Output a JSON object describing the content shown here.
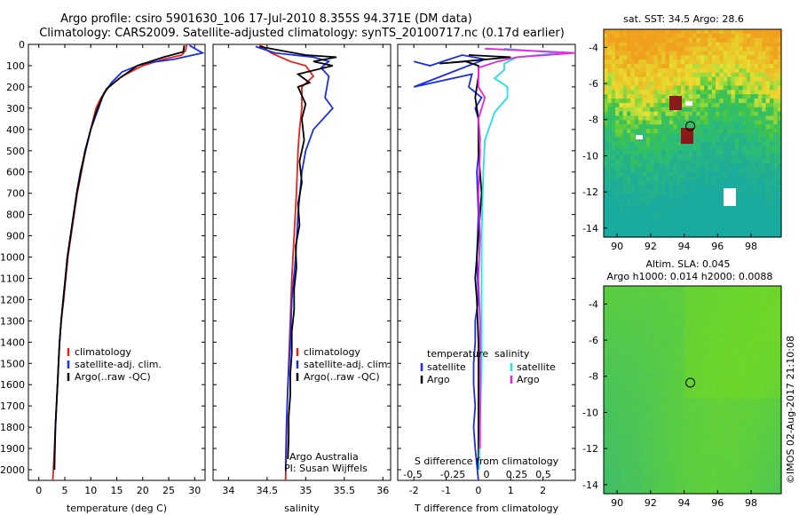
{
  "header": {
    "title_line1": "Argo profile: csiro 5901630_106 17-Jul-2010 8.355S 94.371E (DM data)",
    "title_line2": "Climatology: CARS2009. Satellite-adjusted climatology: synTS_20100717.nc (0.17d earlier)"
  },
  "credit": "©IMOS 02-Aug-2017 21:10:08",
  "colors": {
    "climatology": "#e8201a",
    "satellite": "#1a2ee8",
    "argo": "#000000",
    "cyan": "#22e0e8",
    "magenta": "#e822e0"
  },
  "chart_data": [
    {
      "type": "line",
      "id": "temperature",
      "xlabel": "temperature (deg C)",
      "ylabel": "",
      "xlim": [
        -2,
        32
      ],
      "ylim": [
        2050,
        0
      ],
      "xticks": [
        "0",
        "5",
        "10",
        "15",
        "20",
        "25",
        "30"
      ],
      "yticks": [
        "0",
        "100",
        "200",
        "300",
        "400",
        "500",
        "600",
        "700",
        "800",
        "900",
        "1000",
        "1100",
        "1200",
        "1300",
        "1400",
        "1500",
        "1600",
        "1700",
        "1800",
        "1900",
        "2000"
      ],
      "legend": [
        "climatology",
        "satellite-adj. clim.",
        "Argo(..raw -QC)"
      ],
      "series": [
        {
          "name": "climatology",
          "color": "#e8201a",
          "points": [
            [
              28.5,
              0
            ],
            [
              28.2,
              30
            ],
            [
              27.5,
              50
            ],
            [
              24,
              70
            ],
            [
              20,
              100
            ],
            [
              16,
              150
            ],
            [
              13.5,
              200
            ],
            [
              12,
              250
            ],
            [
              11,
              300
            ],
            [
              10,
              400
            ],
            [
              9,
              500
            ],
            [
              8.2,
              600
            ],
            [
              7.4,
              700
            ],
            [
              6.8,
              800
            ],
            [
              6.2,
              900
            ],
            [
              5.6,
              1000
            ],
            [
              5.2,
              1100
            ],
            [
              4.8,
              1200
            ],
            [
              4.3,
              1300
            ],
            [
              4,
              1400
            ],
            [
              3.8,
              1500
            ],
            [
              3.6,
              1600
            ],
            [
              3.4,
              1700
            ],
            [
              3.2,
              1800
            ],
            [
              3,
              1900
            ],
            [
              2.8,
              2000
            ],
            [
              2.7,
              2050
            ]
          ]
        },
        {
          "name": "satellite-adj. clim.",
          "color": "#1a2ee8",
          "points": [
            [
              29,
              5
            ],
            [
              31.5,
              40
            ],
            [
              26,
              70
            ],
            [
              20,
              90
            ],
            [
              16,
              130
            ],
            [
              14,
              180
            ],
            [
              12.5,
              230
            ],
            [
              11.5,
              300
            ],
            [
              10,
              400
            ],
            [
              9,
              500
            ],
            [
              8,
              600
            ],
            [
              7.3,
              700
            ],
            [
              6.7,
              800
            ],
            [
              6.1,
              900
            ],
            [
              5.5,
              1000
            ],
            [
              5.1,
              1100
            ],
            [
              4.7,
              1200
            ],
            [
              4.3,
              1300
            ],
            [
              4,
              1400
            ],
            [
              3.8,
              1500
            ],
            [
              3.6,
              1600
            ],
            [
              3.4,
              1700
            ],
            [
              3.2,
              1800
            ],
            [
              3.1,
              1900
            ],
            [
              3,
              2000
            ]
          ]
        },
        {
          "name": "Argo(..raw -QC)",
          "color": "#000000",
          "points": [
            [
              28,
              5
            ],
            [
              27.8,
              35
            ],
            [
              24,
              60
            ],
            [
              19,
              100
            ],
            [
              15.5,
              160
            ],
            [
              13,
              210
            ],
            [
              12,
              260
            ],
            [
              11,
              320
            ],
            [
              10,
              400
            ],
            [
              8.9,
              500
            ],
            [
              8.1,
              600
            ],
            [
              7.3,
              700
            ],
            [
              6.7,
              800
            ],
            [
              6.1,
              900
            ],
            [
              5.5,
              1000
            ],
            [
              5.1,
              1100
            ],
            [
              4.7,
              1200
            ],
            [
              4.3,
              1300
            ],
            [
              4,
              1400
            ],
            [
              3.8,
              1500
            ],
            [
              3.6,
              1600
            ],
            [
              3.4,
              1700
            ],
            [
              3.2,
              1800
            ],
            [
              3.1,
              1900
            ],
            [
              3,
              2000
            ]
          ]
        }
      ]
    },
    {
      "type": "line",
      "id": "salinity",
      "xlabel": "salinity",
      "ylabel": "",
      "xlim": [
        33.8,
        36.1
      ],
      "ylim": [
        2050,
        0
      ],
      "xticks": [
        "34",
        "34.5",
        "35",
        "35.5",
        "36"
      ],
      "legend": [
        "climatology",
        "satellite-adj. clim.",
        "Argo(..raw -QC)"
      ],
      "annotations": [
        "Argo Australia",
        "PI: Susan Wijffels"
      ],
      "series": [
        {
          "name": "climatology",
          "color": "#e8201a",
          "points": [
            [
              34.4,
              0
            ],
            [
              34.55,
              40
            ],
            [
              34.8,
              80
            ],
            [
              35,
              100
            ],
            [
              35.1,
              150
            ],
            [
              34.95,
              200
            ],
            [
              34.95,
              300
            ],
            [
              34.92,
              400
            ],
            [
              34.9,
              500
            ],
            [
              34.88,
              700
            ],
            [
              34.85,
              900
            ],
            [
              34.82,
              1100
            ],
            [
              34.8,
              1300
            ],
            [
              34.78,
              1500
            ],
            [
              34.76,
              1700
            ],
            [
              34.75,
              1900
            ],
            [
              34.74,
              2050
            ]
          ]
        },
        {
          "name": "satellite-adj. clim.",
          "color": "#1a2ee8",
          "points": [
            [
              34.35,
              10
            ],
            [
              34.6,
              40
            ],
            [
              35.1,
              60
            ],
            [
              35.3,
              80
            ],
            [
              35.2,
              110
            ],
            [
              35.3,
              150
            ],
            [
              35.25,
              250
            ],
            [
              35.35,
              300
            ],
            [
              35.1,
              400
            ],
            [
              35,
              500
            ],
            [
              34.95,
              600
            ],
            [
              34.9,
              800
            ],
            [
              34.87,
              1000
            ],
            [
              34.82,
              1200
            ],
            [
              34.8,
              1400
            ],
            [
              34.77,
              1600
            ],
            [
              34.75,
              1800
            ],
            [
              34.74,
              2000
            ]
          ]
        },
        {
          "name": "Argo(..raw -QC)",
          "color": "#000000",
          "points": [
            [
              34.4,
              10
            ],
            [
              34.7,
              30
            ],
            [
              35,
              50
            ],
            [
              35.4,
              60
            ],
            [
              35.1,
              80
            ],
            [
              35.35,
              100
            ],
            [
              34.9,
              140
            ],
            [
              35.05,
              180
            ],
            [
              34.9,
              200
            ],
            [
              35,
              280
            ],
            [
              34.95,
              350
            ],
            [
              34.98,
              450
            ],
            [
              34.92,
              550
            ],
            [
              34.95,
              650
            ],
            [
              34.9,
              750
            ],
            [
              34.92,
              850
            ],
            [
              34.87,
              950
            ],
            [
              34.88,
              1050
            ],
            [
              34.85,
              1150
            ],
            [
              34.85,
              1250
            ],
            [
              34.82,
              1350
            ],
            [
              34.82,
              1450
            ],
            [
              34.8,
              1550
            ],
            [
              34.8,
              1650
            ],
            [
              34.78,
              1750
            ],
            [
              34.78,
              1850
            ],
            [
              34.77,
              1950
            ]
          ]
        }
      ]
    },
    {
      "type": "line",
      "id": "difference",
      "xlabel": "T difference from climatology",
      "xlabel_top": "S difference from climatology",
      "ylabel": "",
      "xlim": [
        -2.5,
        3
      ],
      "ylim": [
        2050,
        0
      ],
      "xticks": [
        "-2",
        "-1",
        "0",
        "1",
        "2"
      ],
      "xticks_top": [
        "-0.5",
        "-0.25",
        "0",
        "0.25",
        "0.5"
      ],
      "legend_left_title": "temperature",
      "legend_right_title": "salinity",
      "legend": [
        "satellite",
        "Argo",
        "satellite",
        "Argo"
      ],
      "series": [
        {
          "name": "temperature satellite",
          "color": "#1a2ee8",
          "points": [
            [
              -2,
              80
            ],
            [
              -1.5,
              100
            ],
            [
              -0.5,
              50
            ],
            [
              0.2,
              70
            ],
            [
              -2,
              200
            ],
            [
              -0.2,
              140
            ],
            [
              -0.3,
              200
            ],
            [
              0.1,
              250
            ],
            [
              -0.1,
              300
            ],
            [
              0,
              350
            ],
            [
              0.05,
              450
            ],
            [
              -0.05,
              600
            ],
            [
              0,
              800
            ],
            [
              -0.05,
              1000
            ],
            [
              0,
              1200
            ],
            [
              -0.1,
              1300
            ],
            [
              -0.1,
              1400
            ],
            [
              -0.15,
              1500
            ],
            [
              -0.15,
              1600
            ],
            [
              -0.1,
              1700
            ],
            [
              -0.15,
              1800
            ],
            [
              -0.1,
              1900
            ],
            [
              0,
              2050
            ]
          ]
        },
        {
          "name": "temperature Argo",
          "color": "#000000",
          "points": [
            [
              -0.3,
              50
            ],
            [
              1,
              60
            ],
            [
              -1.2,
              90
            ],
            [
              -0.4,
              80
            ],
            [
              0,
              100
            ],
            [
              0,
              150
            ],
            [
              -0.1,
              250
            ],
            [
              0,
              350
            ],
            [
              0,
              500
            ],
            [
              0.1,
              700
            ],
            [
              0,
              900
            ],
            [
              -0.05,
              1000
            ],
            [
              -0.1,
              1100
            ],
            [
              -0.05,
              1200
            ],
            [
              0,
              1400
            ],
            [
              0,
              1600
            ],
            [
              0,
              1800
            ],
            [
              0,
              2000
            ]
          ]
        },
        {
          "name": "salinity satellite",
          "color": "#22e0e8",
          "points": [
            [
              0.8,
              20
            ],
            [
              2.5,
              40
            ],
            [
              1.2,
              60
            ],
            [
              0.8,
              90
            ],
            [
              0.8,
              120
            ],
            [
              0.5,
              160
            ],
            [
              0.9,
              200
            ],
            [
              0.9,
              250
            ],
            [
              0.5,
              320
            ],
            [
              0.2,
              450
            ],
            [
              0.15,
              600
            ],
            [
              0.1,
              900
            ],
            [
              0.1,
              1200
            ],
            [
              0.1,
              1500
            ],
            [
              0.05,
              1800
            ],
            [
              0.02,
              2000
            ]
          ]
        },
        {
          "name": "salinity Argo",
          "color": "#e822e0",
          "points": [
            [
              0.2,
              20
            ],
            [
              3,
              40
            ],
            [
              1.2,
              60
            ],
            [
              0.6,
              80
            ],
            [
              0,
              110
            ],
            [
              0,
              200
            ],
            [
              0.2,
              250
            ],
            [
              0.1,
              300
            ],
            [
              0,
              350
            ],
            [
              0.05,
              500
            ],
            [
              0,
              700
            ],
            [
              0.05,
              900
            ],
            [
              0,
              1100
            ],
            [
              0.05,
              1300
            ],
            [
              0.05,
              1500
            ],
            [
              0.05,
              1700
            ],
            [
              0.05,
              1900
            ]
          ]
        }
      ]
    },
    {
      "type": "heatmap",
      "id": "sst_map",
      "title": "sat. SST: 34.5  Argo: 28.6",
      "xlim": [
        89.2,
        99.8
      ],
      "ylim": [
        -14.5,
        -3
      ],
      "xticks": [
        "90",
        "92",
        "94",
        "96",
        "98"
      ],
      "yticks": [
        "-4",
        "-6",
        "-8",
        "-10",
        "-12",
        "-14"
      ],
      "marker": {
        "lon": 94.371,
        "lat": -8.355
      }
    },
    {
      "type": "heatmap",
      "id": "sla_map",
      "title": "Altim. SLA: 0.045",
      "subtitle": "Argo h1000: 0.014 h2000: 0.0088",
      "xlim": [
        89.2,
        99.8
      ],
      "ylim": [
        -14.5,
        -3
      ],
      "xticks": [
        "90",
        "92",
        "94",
        "96",
        "98"
      ],
      "yticks": [
        "-4",
        "-6",
        "-8",
        "-10",
        "-12",
        "-14"
      ],
      "marker": {
        "lon": 94.371,
        "lat": -8.355
      }
    }
  ]
}
